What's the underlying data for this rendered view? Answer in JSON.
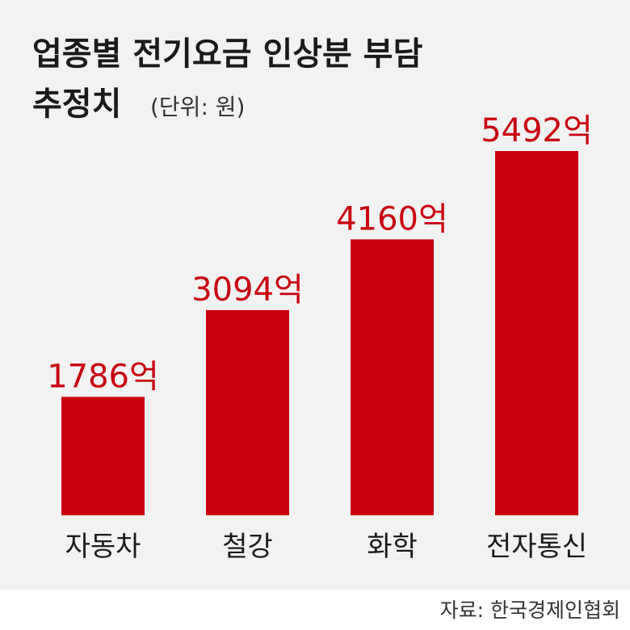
{
  "chart_data": {
    "type": "bar",
    "title": [
      "업종별 전기요금 인상분 부담",
      "추정치"
    ],
    "unit": "(단위: 원)",
    "categories": [
      "자동차",
      "철강",
      "화학",
      "전자통신"
    ],
    "values": [
      1786,
      3094,
      4160,
      5492
    ],
    "value_labels": [
      "1786억",
      "3094억",
      "4160억",
      "5492억"
    ],
    "color": "#c8000f",
    "source": "자료: 한국경제인협회"
  }
}
